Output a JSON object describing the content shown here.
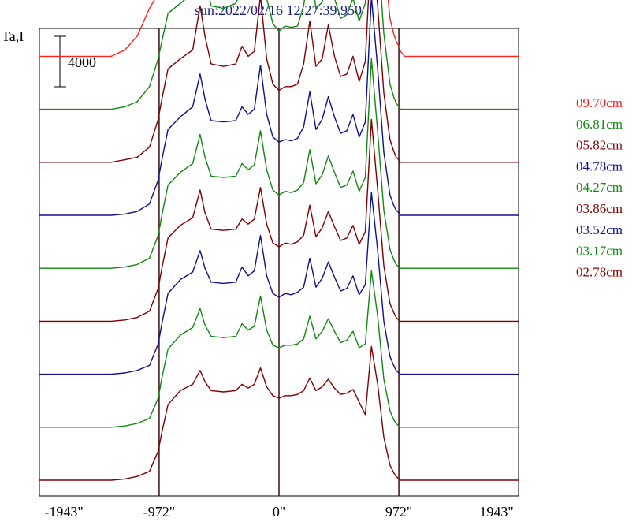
{
  "chart_data": {
    "type": "line",
    "title": "sun:2022/02/16 12:27:39.950",
    "ylabel": "Ta,I",
    "scale_bar_label": "4000",
    "xlim": [
      -1943,
      1943
    ],
    "x_ticks": [
      {
        "value": -1943,
        "label": "-1943\""
      },
      {
        "value": -972,
        "label": "-972\""
      },
      {
        "value": 0,
        "label": "0\""
      },
      {
        "value": 972,
        "label": "972\""
      },
      {
        "value": 1943,
        "label": "1943\""
      }
    ],
    "vertical_markers": [
      -972,
      0,
      972
    ],
    "series_offset": 4200,
    "x": [
      -1943,
      -1500,
      -1360,
      -1250,
      -1150,
      -1050,
      -980,
      -950,
      -900,
      -800,
      -700,
      -640,
      -600,
      -550,
      -450,
      -350,
      -300,
      -250,
      -200,
      -150,
      -100,
      -50,
      0,
      50,
      100,
      150,
      200,
      250,
      300,
      350,
      400,
      450,
      500,
      550,
      600,
      650,
      700,
      750,
      800,
      850,
      900,
      930,
      950,
      972,
      985,
      1000,
      1020,
      1050,
      1100,
      1200,
      1300,
      1400,
      1943
    ],
    "series": [
      {
        "name": "09.70cm",
        "color": "#ff2020",
        "values": [
          0,
          0,
          0,
          500,
          1600,
          3800,
          5000,
          5800,
          7000,
          8200,
          9800,
          15200,
          11500,
          9000,
          8800,
          9400,
          10000,
          9400,
          10200,
          15800,
          10800,
          8600,
          8000,
          8200,
          8100,
          7900,
          9000,
          12600,
          9600,
          10400,
          12900,
          10200,
          8800,
          9000,
          10500,
          8800,
          9200,
          18400,
          15000,
          8000,
          3000,
          1800,
          1200,
          800,
          400,
          200,
          0,
          0,
          0,
          0,
          0,
          0,
          0
        ]
      },
      {
        "name": "06.81cm",
        "color": "#118811",
        "values": [
          0,
          0,
          0,
          200,
          600,
          1800,
          4000,
          5400,
          7600,
          8400,
          9200,
          13000,
          10400,
          8200,
          8000,
          8400,
          9600,
          8800,
          9400,
          13800,
          8800,
          6800,
          6200,
          6600,
          6500,
          6600,
          8200,
          11800,
          8000,
          8500,
          11300,
          8800,
          7200,
          7500,
          8800,
          7000,
          8400,
          17800,
          13000,
          6000,
          2000,
          1000,
          500,
          200,
          0,
          0,
          0,
          0,
          0,
          0,
          0,
          0,
          0
        ]
      },
      {
        "name": "05.82cm",
        "color": "#800000",
        "values": [
          0,
          0,
          0,
          200,
          400,
          1200,
          3400,
          5000,
          7400,
          8200,
          8900,
          12400,
          10000,
          7800,
          7600,
          7800,
          9200,
          8400,
          8800,
          13200,
          8200,
          6200,
          5700,
          6000,
          6000,
          6200,
          7800,
          11200,
          7600,
          8200,
          10900,
          8400,
          6800,
          7000,
          8400,
          6400,
          8000,
          17600,
          12400,
          5500,
          1800,
          900,
          400,
          200,
          0,
          0,
          0,
          0,
          0,
          0,
          0,
          0,
          0
        ]
      },
      {
        "name": "04.78cm",
        "color": "#10108a",
        "values": [
          0,
          0,
          0,
          100,
          300,
          900,
          2800,
          4400,
          6800,
          7800,
          8600,
          11200,
          9200,
          7500,
          7400,
          7500,
          8600,
          8000,
          8400,
          11900,
          8000,
          6200,
          5800,
          6000,
          5900,
          6100,
          7000,
          9800,
          6800,
          7600,
          9400,
          7800,
          6500,
          6700,
          8000,
          6200,
          7400,
          17300,
          11600,
          5000,
          1600,
          800,
          400,
          200,
          0,
          0,
          0,
          0,
          0,
          0,
          0,
          0,
          0
        ]
      },
      {
        "name": "04.27cm",
        "color": "#118811",
        "values": [
          0,
          0,
          0,
          100,
          300,
          800,
          2600,
          4200,
          6600,
          7600,
          8300,
          10600,
          8800,
          7300,
          7200,
          7300,
          8300,
          7800,
          8200,
          10900,
          7800,
          6200,
          5800,
          6100,
          6000,
          6200,
          6800,
          9400,
          6700,
          7400,
          8900,
          7600,
          6400,
          6600,
          7700,
          6100,
          7200,
          16600,
          10800,
          4600,
          1500,
          700,
          300,
          100,
          0,
          0,
          0,
          0,
          0,
          0,
          0,
          0,
          0
        ]
      },
      {
        "name": "03.86cm",
        "color": "#800000",
        "values": [
          0,
          0,
          0,
          100,
          300,
          800,
          2600,
          4200,
          6600,
          7600,
          8200,
          10400,
          8600,
          7300,
          7200,
          7300,
          8100,
          7700,
          8100,
          10600,
          7700,
          6200,
          5900,
          6200,
          6100,
          6300,
          6800,
          9200,
          6700,
          7400,
          8700,
          7500,
          6400,
          6600,
          7600,
          6100,
          7100,
          16000,
          10400,
          4400,
          1400,
          700,
          300,
          100,
          0,
          0,
          0,
          0,
          0,
          0,
          0,
          0,
          0
        ]
      },
      {
        "name": "03.52cm",
        "color": "#10108a",
        "values": [
          0,
          0,
          0,
          100,
          300,
          700,
          2400,
          4000,
          6400,
          7500,
          8100,
          9800,
          8400,
          7300,
          7200,
          7300,
          8500,
          7800,
          8200,
          11000,
          7800,
          6400,
          6100,
          6400,
          6300,
          6500,
          6900,
          9200,
          6900,
          7600,
          8900,
          7700,
          6600,
          6800,
          7800,
          6300,
          7100,
          14400,
          9800,
          4200,
          1400,
          700,
          300,
          100,
          0,
          0,
          0,
          0,
          0,
          0,
          0,
          0,
          0
        ]
      },
      {
        "name": "03.17cm",
        "color": "#118811",
        "values": [
          0,
          0,
          0,
          100,
          300,
          700,
          2300,
          3900,
          6200,
          7300,
          7900,
          9400,
          8100,
          7200,
          7100,
          7200,
          8200,
          7700,
          8000,
          10400,
          7700,
          6500,
          6300,
          6500,
          6500,
          6600,
          7000,
          8800,
          7000,
          7600,
          8600,
          7600,
          6700,
          6900,
          7600,
          6300,
          6600,
          12400,
          8800,
          3800,
          1300,
          600,
          300,
          100,
          0,
          0,
          0,
          0,
          0,
          0,
          0,
          0,
          0
        ]
      },
      {
        "name": "02.78cm",
        "color": "#800000",
        "values": [
          0,
          0,
          0,
          100,
          300,
          700,
          2300,
          3800,
          6000,
          7100,
          7600,
          8700,
          7800,
          7100,
          7000,
          7100,
          7600,
          7300,
          7600,
          8900,
          7400,
          6700,
          6500,
          6700,
          6700,
          6800,
          7100,
          8100,
          7100,
          7400,
          8000,
          7300,
          6800,
          6900,
          7200,
          6200,
          5200,
          10600,
          7600,
          3400,
          1200,
          600,
          300,
          100,
          0,
          0,
          0,
          0,
          0,
          0,
          0,
          0,
          0
        ]
      }
    ]
  },
  "colors": {
    "title": "#1a237e",
    "axis": "#000000",
    "marker_line": "#3a1010"
  }
}
